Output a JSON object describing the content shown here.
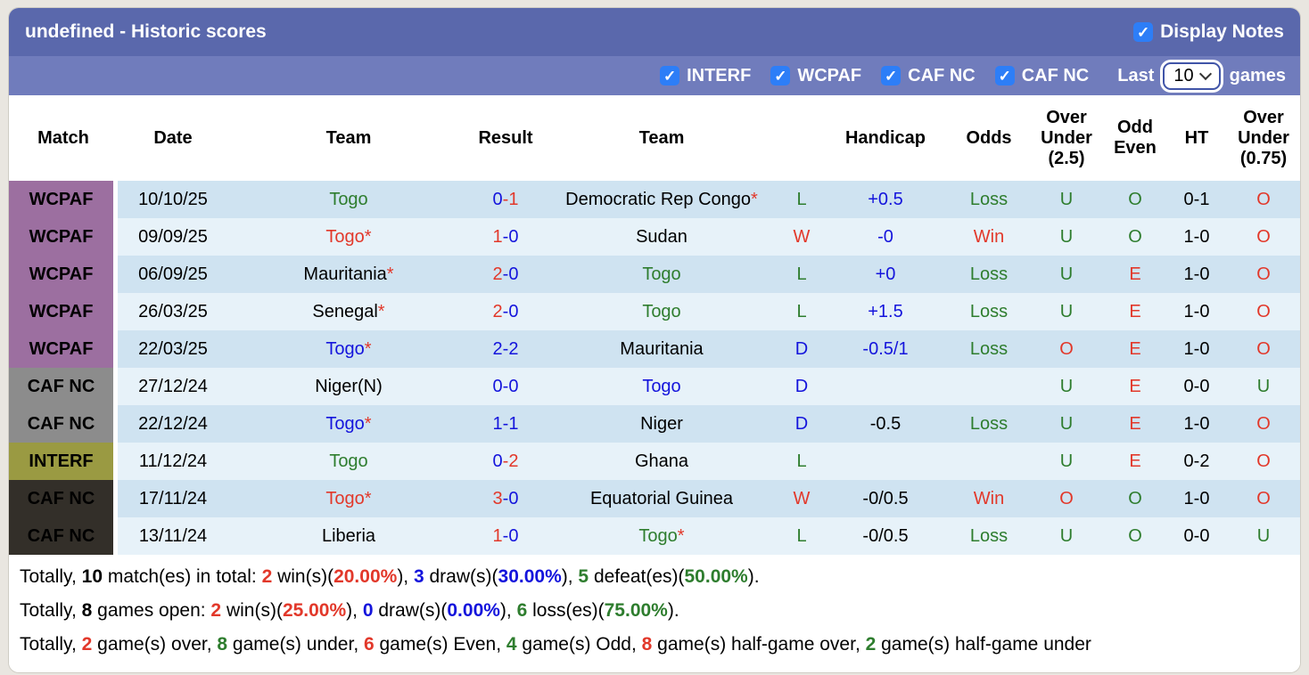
{
  "title_bar": {
    "title": "undefined - Historic scores",
    "display_notes_label": "Display Notes"
  },
  "filter_bar": {
    "competitions": [
      "INTERF",
      "WCPAF",
      "CAF NC",
      "CAF NC"
    ],
    "last_label": "Last",
    "games_count": "10",
    "games_label": "games"
  },
  "colors": {
    "text": {
      "red": "#e2382a",
      "green": "#2e7d2e",
      "blue": "#1414dc",
      "black": "#000000"
    },
    "badges": {
      "wcpaf": "#9c6fa0",
      "gray": "#8c8c8c",
      "olive": "#9a9a42",
      "dark": "#332f29"
    },
    "row_dark": "#cfe3f1",
    "row_light": "#e7f2f9",
    "title_bar": "#5a68ac",
    "filter_bar": "#707cbc",
    "checkbox": "#2d7ef7"
  },
  "table": {
    "headers": [
      "Match",
      "Date",
      "Team",
      "Result",
      "Team",
      "",
      "Handicap",
      "Odds",
      "Over Under (2.5)",
      "Odd Even",
      "HT",
      "Over Under (0.75)"
    ],
    "rows": [
      {
        "comp": "WCPAF",
        "badge": "wcpaf",
        "date": "10/10/25",
        "home": {
          "name": "Togo",
          "color": "green",
          "star": false
        },
        "res": {
          "h": "0",
          "a": "1",
          "hc": "blue",
          "ac": "red"
        },
        "away": {
          "name": "Democratic Rep Congo",
          "color": "black",
          "star": true
        },
        "wld": {
          "t": "L",
          "c": "green"
        },
        "hcap": {
          "t": "+0.5",
          "c": "blue"
        },
        "odds": {
          "t": "Loss",
          "c": "green"
        },
        "ou25": {
          "t": "U",
          "c": "green"
        },
        "oe": {
          "t": "O",
          "c": "green"
        },
        "ht": "0-1",
        "ou075": {
          "t": "O",
          "c": "red"
        }
      },
      {
        "comp": "WCPAF",
        "badge": "wcpaf",
        "date": "09/09/25",
        "home": {
          "name": "Togo",
          "color": "red",
          "star": true
        },
        "res": {
          "h": "1",
          "a": "0",
          "hc": "red",
          "ac": "blue"
        },
        "away": {
          "name": "Sudan",
          "color": "black",
          "star": false
        },
        "wld": {
          "t": "W",
          "c": "red"
        },
        "hcap": {
          "t": "-0",
          "c": "blue"
        },
        "odds": {
          "t": "Win",
          "c": "red"
        },
        "ou25": {
          "t": "U",
          "c": "green"
        },
        "oe": {
          "t": "O",
          "c": "green"
        },
        "ht": "1-0",
        "ou075": {
          "t": "O",
          "c": "red"
        }
      },
      {
        "comp": "WCPAF",
        "badge": "wcpaf",
        "date": "06/09/25",
        "home": {
          "name": "Mauritania",
          "color": "black",
          "star": true
        },
        "res": {
          "h": "2",
          "a": "0",
          "hc": "red",
          "ac": "blue"
        },
        "away": {
          "name": "Togo",
          "color": "green",
          "star": false
        },
        "wld": {
          "t": "L",
          "c": "green"
        },
        "hcap": {
          "t": "+0",
          "c": "blue"
        },
        "odds": {
          "t": "Loss",
          "c": "green"
        },
        "ou25": {
          "t": "U",
          "c": "green"
        },
        "oe": {
          "t": "E",
          "c": "red"
        },
        "ht": "1-0",
        "ou075": {
          "t": "O",
          "c": "red"
        }
      },
      {
        "comp": "WCPAF",
        "badge": "wcpaf",
        "date": "26/03/25",
        "home": {
          "name": "Senegal",
          "color": "black",
          "star": true
        },
        "res": {
          "h": "2",
          "a": "0",
          "hc": "red",
          "ac": "blue"
        },
        "away": {
          "name": "Togo",
          "color": "green",
          "star": false
        },
        "wld": {
          "t": "L",
          "c": "green"
        },
        "hcap": {
          "t": "+1.5",
          "c": "blue"
        },
        "odds": {
          "t": "Loss",
          "c": "green"
        },
        "ou25": {
          "t": "U",
          "c": "green"
        },
        "oe": {
          "t": "E",
          "c": "red"
        },
        "ht": "1-0",
        "ou075": {
          "t": "O",
          "c": "red"
        }
      },
      {
        "comp": "WCPAF",
        "badge": "wcpaf",
        "date": "22/03/25",
        "home": {
          "name": "Togo",
          "color": "blue",
          "star": true
        },
        "res": {
          "h": "2",
          "a": "2",
          "hc": "blue",
          "ac": "blue"
        },
        "away": {
          "name": "Mauritania",
          "color": "black",
          "star": false
        },
        "wld": {
          "t": "D",
          "c": "blue"
        },
        "hcap": {
          "t": "-0.5/1",
          "c": "blue"
        },
        "odds": {
          "t": "Loss",
          "c": "green"
        },
        "ou25": {
          "t": "O",
          "c": "red"
        },
        "oe": {
          "t": "E",
          "c": "red"
        },
        "ht": "1-0",
        "ou075": {
          "t": "O",
          "c": "red"
        }
      },
      {
        "comp": "CAF NC",
        "badge": "gray",
        "date": "27/12/24",
        "home": {
          "name": "Niger(N)",
          "color": "black",
          "star": false
        },
        "res": {
          "h": "0",
          "a": "0",
          "hc": "blue",
          "ac": "blue"
        },
        "away": {
          "name": "Togo",
          "color": "blue",
          "star": false
        },
        "wld": {
          "t": "D",
          "c": "blue"
        },
        "hcap": {
          "t": "",
          "c": "black"
        },
        "odds": {
          "t": "",
          "c": "black"
        },
        "ou25": {
          "t": "U",
          "c": "green"
        },
        "oe": {
          "t": "E",
          "c": "red"
        },
        "ht": "0-0",
        "ou075": {
          "t": "U",
          "c": "green"
        }
      },
      {
        "comp": "CAF NC",
        "badge": "gray",
        "date": "22/12/24",
        "home": {
          "name": "Togo",
          "color": "blue",
          "star": true
        },
        "res": {
          "h": "1",
          "a": "1",
          "hc": "blue",
          "ac": "blue"
        },
        "away": {
          "name": "Niger",
          "color": "black",
          "star": false
        },
        "wld": {
          "t": "D",
          "c": "blue"
        },
        "hcap": {
          "t": "-0.5",
          "c": "black"
        },
        "odds": {
          "t": "Loss",
          "c": "green"
        },
        "ou25": {
          "t": "U",
          "c": "green"
        },
        "oe": {
          "t": "E",
          "c": "red"
        },
        "ht": "1-0",
        "ou075": {
          "t": "O",
          "c": "red"
        }
      },
      {
        "comp": "INTERF",
        "badge": "olive",
        "date": "11/12/24",
        "home": {
          "name": "Togo",
          "color": "green",
          "star": false
        },
        "res": {
          "h": "0",
          "a": "2",
          "hc": "blue",
          "ac": "red"
        },
        "away": {
          "name": "Ghana",
          "color": "black",
          "star": false
        },
        "wld": {
          "t": "L",
          "c": "green"
        },
        "hcap": {
          "t": "",
          "c": "black"
        },
        "odds": {
          "t": "",
          "c": "black"
        },
        "ou25": {
          "t": "U",
          "c": "green"
        },
        "oe": {
          "t": "E",
          "c": "red"
        },
        "ht": "0-2",
        "ou075": {
          "t": "O",
          "c": "red"
        }
      },
      {
        "comp": "CAF NC",
        "badge": "dark",
        "date": "17/11/24",
        "home": {
          "name": "Togo",
          "color": "red",
          "star": true
        },
        "res": {
          "h": "3",
          "a": "0",
          "hc": "red",
          "ac": "blue"
        },
        "away": {
          "name": "Equatorial Guinea",
          "color": "black",
          "star": false
        },
        "wld": {
          "t": "W",
          "c": "red"
        },
        "hcap": {
          "t": "-0/0.5",
          "c": "black"
        },
        "odds": {
          "t": "Win",
          "c": "red"
        },
        "ou25": {
          "t": "O",
          "c": "red"
        },
        "oe": {
          "t": "O",
          "c": "green"
        },
        "ht": "1-0",
        "ou075": {
          "t": "O",
          "c": "red"
        }
      },
      {
        "comp": "CAF NC",
        "badge": "dark",
        "date": "13/11/24",
        "home": {
          "name": "Liberia",
          "color": "black",
          "star": false
        },
        "res": {
          "h": "1",
          "a": "0",
          "hc": "red",
          "ac": "blue"
        },
        "away": {
          "name": "Togo",
          "color": "green",
          "star": true
        },
        "wld": {
          "t": "L",
          "c": "green"
        },
        "hcap": {
          "t": "-0/0.5",
          "c": "black"
        },
        "odds": {
          "t": "Loss",
          "c": "green"
        },
        "ou25": {
          "t": "U",
          "c": "green"
        },
        "oe": {
          "t": "O",
          "c": "green"
        },
        "ht": "0-0",
        "ou075": {
          "t": "U",
          "c": "green"
        }
      }
    ]
  },
  "summary": {
    "lines": [
      [
        {
          "t": "Totally, "
        },
        {
          "t": "10",
          "b": 1
        },
        {
          "t": " match(es) in total: "
        },
        {
          "t": "2",
          "c": "red",
          "b": 1
        },
        {
          "t": " win(s)("
        },
        {
          "t": "20.00%",
          "c": "red",
          "b": 1
        },
        {
          "t": "), "
        },
        {
          "t": "3",
          "c": "blue",
          "b": 1
        },
        {
          "t": " draw(s)("
        },
        {
          "t": "30.00%",
          "c": "blue",
          "b": 1
        },
        {
          "t": "), "
        },
        {
          "t": "5",
          "c": "green",
          "b": 1
        },
        {
          "t": " defeat(es)("
        },
        {
          "t": "50.00%",
          "c": "green",
          "b": 1
        },
        {
          "t": ")."
        }
      ],
      [
        {
          "t": "Totally, "
        },
        {
          "t": "8",
          "b": 1
        },
        {
          "t": " games open: "
        },
        {
          "t": "2",
          "c": "red",
          "b": 1
        },
        {
          "t": " win(s)("
        },
        {
          "t": "25.00%",
          "c": "red",
          "b": 1
        },
        {
          "t": "), "
        },
        {
          "t": "0",
          "c": "blue",
          "b": 1
        },
        {
          "t": " draw(s)("
        },
        {
          "t": "0.00%",
          "c": "blue",
          "b": 1
        },
        {
          "t": "), "
        },
        {
          "t": "6",
          "c": "green",
          "b": 1
        },
        {
          "t": " loss(es)("
        },
        {
          "t": "75.00%",
          "c": "green",
          "b": 1
        },
        {
          "t": ")."
        }
      ],
      [
        {
          "t": "Totally, "
        },
        {
          "t": "2",
          "c": "red",
          "b": 1
        },
        {
          "t": " game(s) over, "
        },
        {
          "t": "8",
          "c": "green",
          "b": 1
        },
        {
          "t": " game(s) under, "
        },
        {
          "t": "6",
          "c": "red",
          "b": 1
        },
        {
          "t": " game(s) Even, "
        },
        {
          "t": "4",
          "c": "green",
          "b": 1
        },
        {
          "t": " game(s) Odd, "
        },
        {
          "t": "8",
          "c": "red",
          "b": 1
        },
        {
          "t": " game(s) half-game over, "
        },
        {
          "t": "2",
          "c": "green",
          "b": 1
        },
        {
          "t": " game(s) half-game under"
        }
      ]
    ]
  }
}
